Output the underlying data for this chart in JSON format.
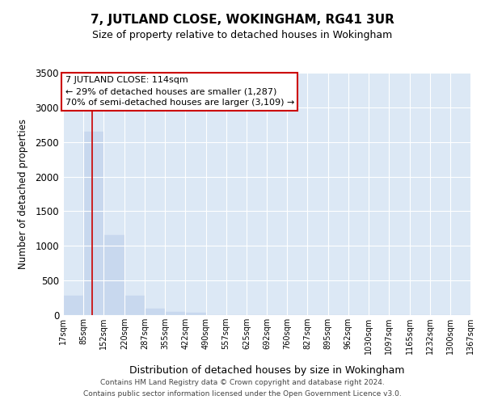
{
  "title": "7, JUTLAND CLOSE, WOKINGHAM, RG41 3UR",
  "subtitle": "Size of property relative to detached houses in Wokingham",
  "xlabel": "Distribution of detached houses by size in Wokingham",
  "ylabel": "Number of detached properties",
  "property_label": "7 JUTLAND CLOSE: 114sqm",
  "annotation_line1": "← 29% of detached houses are smaller (1,287)",
  "annotation_line2": "70% of semi-detached houses are larger (3,109) →",
  "bin_edges": [
    17,
    85,
    152,
    220,
    287,
    355,
    422,
    490,
    557,
    625,
    692,
    760,
    827,
    895,
    962,
    1030,
    1097,
    1165,
    1232,
    1300,
    1367
  ],
  "bin_labels": [
    "17sqm",
    "85sqm",
    "152sqm",
    "220sqm",
    "287sqm",
    "355sqm",
    "422sqm",
    "490sqm",
    "557sqm",
    "625sqm",
    "692sqm",
    "760sqm",
    "827sqm",
    "895sqm",
    "962sqm",
    "1030sqm",
    "1097sqm",
    "1165sqm",
    "1232sqm",
    "1300sqm",
    "1367sqm"
  ],
  "bar_values": [
    280,
    2650,
    1150,
    280,
    90,
    50,
    30,
    0,
    0,
    0,
    0,
    0,
    0,
    0,
    0,
    0,
    0,
    0,
    0,
    0
  ],
  "bar_color": "#c8d8ee",
  "bar_edge_color": "#c8d8ee",
  "vline_color": "#cc0000",
  "vline_x": 114,
  "annotation_box_color": "#ffffff",
  "annotation_box_edge": "#cc0000",
  "footer_line1": "Contains HM Land Registry data © Crown copyright and database right 2024.",
  "footer_line2": "Contains public sector information licensed under the Open Government Licence v3.0.",
  "ylim": [
    0,
    3500
  ],
  "yticks": [
    0,
    500,
    1000,
    1500,
    2000,
    2500,
    3000,
    3500
  ],
  "fig_bg_color": "#ffffff",
  "plot_bg_color": "#dce8f5",
  "grid_color": "#ffffff"
}
